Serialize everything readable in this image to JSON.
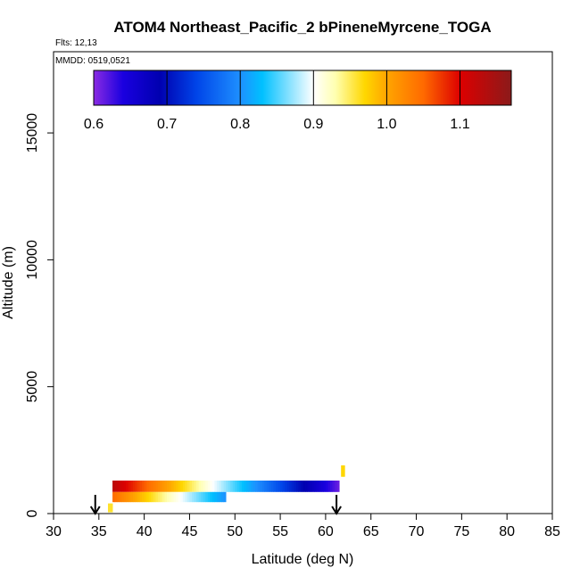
{
  "chart_data": {
    "type": "heatmap",
    "title": "ATOM4 Northeast_Pacific_2 bPineneMyrcene_TOGA",
    "annotations": [
      "Flts: 12,13",
      "MMDD: 0519,0521"
    ],
    "xlabel": "Latitude (deg N)",
    "ylabel": "Altitude (m)",
    "xlim": [
      30,
      85
    ],
    "ylim": [
      0,
      18200
    ],
    "x_ticks": [
      30,
      35,
      40,
      45,
      50,
      55,
      60,
      65,
      70,
      75,
      80,
      85
    ],
    "y_ticks": [
      0,
      5000,
      10000,
      15000
    ],
    "grid": false,
    "colorbar": {
      "range": [
        0.6,
        1.17
      ],
      "ticks": [
        0.6,
        0.7,
        0.8,
        0.9,
        1.0,
        1.1
      ],
      "tick_labels": [
        "0.6",
        "0.7",
        "0.8",
        "0.9",
        "1.0",
        "1.1"
      ],
      "stops": [
        {
          "v": 0.6,
          "color": "#8a2be2"
        },
        {
          "v": 0.64,
          "color": "#1a00e0"
        },
        {
          "v": 0.69,
          "color": "#0000b0"
        },
        {
          "v": 0.74,
          "color": "#0044e8"
        },
        {
          "v": 0.8,
          "color": "#1e90ff"
        },
        {
          "v": 0.83,
          "color": "#00c0ff"
        },
        {
          "v": 0.9,
          "color": "#ffffff"
        },
        {
          "v": 0.93,
          "color": "#ffffb0"
        },
        {
          "v": 0.97,
          "color": "#ffd700"
        },
        {
          "v": 1.0,
          "color": "#ffa500"
        },
        {
          "v": 1.05,
          "color": "#ff6a00"
        },
        {
          "v": 1.1,
          "color": "#dd0000"
        },
        {
          "v": 1.17,
          "color": "#8b1a1a"
        }
      ]
    },
    "bands": [
      {
        "lat_start": 36.5,
        "lat_end": 61.5,
        "alt_bottom": 850,
        "alt_top": 1300,
        "v_start": 1.13,
        "v_end": 0.61
      },
      {
        "lat_start": 36.5,
        "lat_end": 49,
        "alt_bottom": 450,
        "alt_top": 850,
        "v_start": 1.05,
        "v_end": 0.8
      },
      {
        "lat_start": 36,
        "lat_end": 36.5,
        "alt_bottom": 50,
        "alt_top": 400,
        "v_start": 0.96,
        "v_end": 0.96
      },
      {
        "lat_start": 61.7,
        "lat_end": 62.1,
        "alt_bottom": 1450,
        "alt_top": 1900,
        "v_start": 0.97,
        "v_end": 0.97
      }
    ],
    "markers": [
      {
        "type": "arrow-down",
        "lat": 34.6
      },
      {
        "type": "arrow-down",
        "lat": 61.2
      }
    ]
  }
}
